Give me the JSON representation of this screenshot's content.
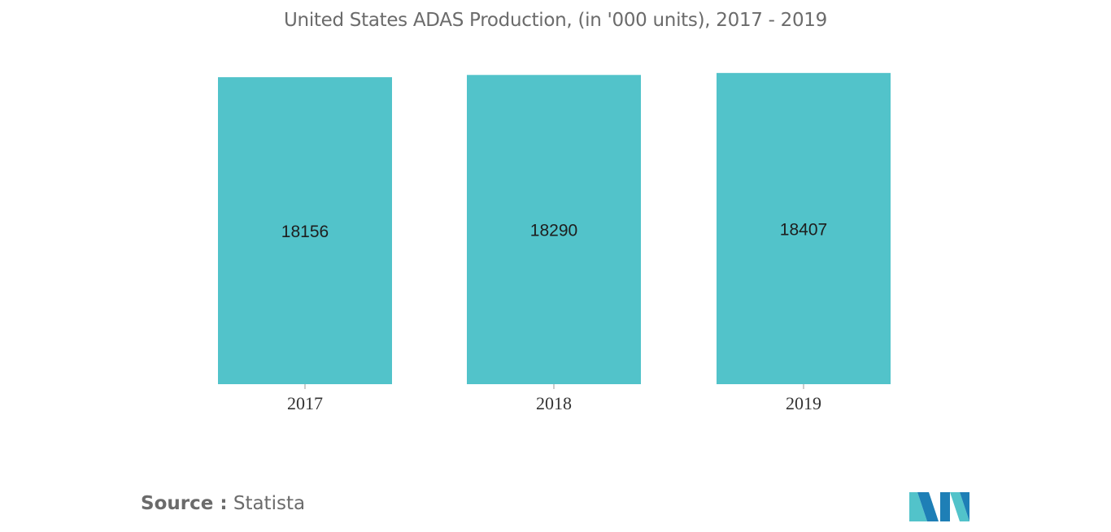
{
  "chart_data": {
    "type": "bar",
    "title": "United States ADAS Production, (in '000 units), 2017 - 2019",
    "categories": [
      "2017",
      "2018",
      "2019"
    ],
    "values": [
      18156,
      18290,
      18407
    ],
    "data_labels": [
      "18156",
      "18290",
      "18407"
    ],
    "xlabel": "",
    "ylabel": "",
    "ylim": [
      0,
      19600
    ],
    "grid": false,
    "legend": "none",
    "bar_color": "#52c3ca"
  },
  "source": {
    "label": "Source :",
    "value": "Statista"
  },
  "colors": {
    "title": "#6b6b6b",
    "logo_dark": "#1e7fb6",
    "logo_light": "#52c3ca"
  }
}
